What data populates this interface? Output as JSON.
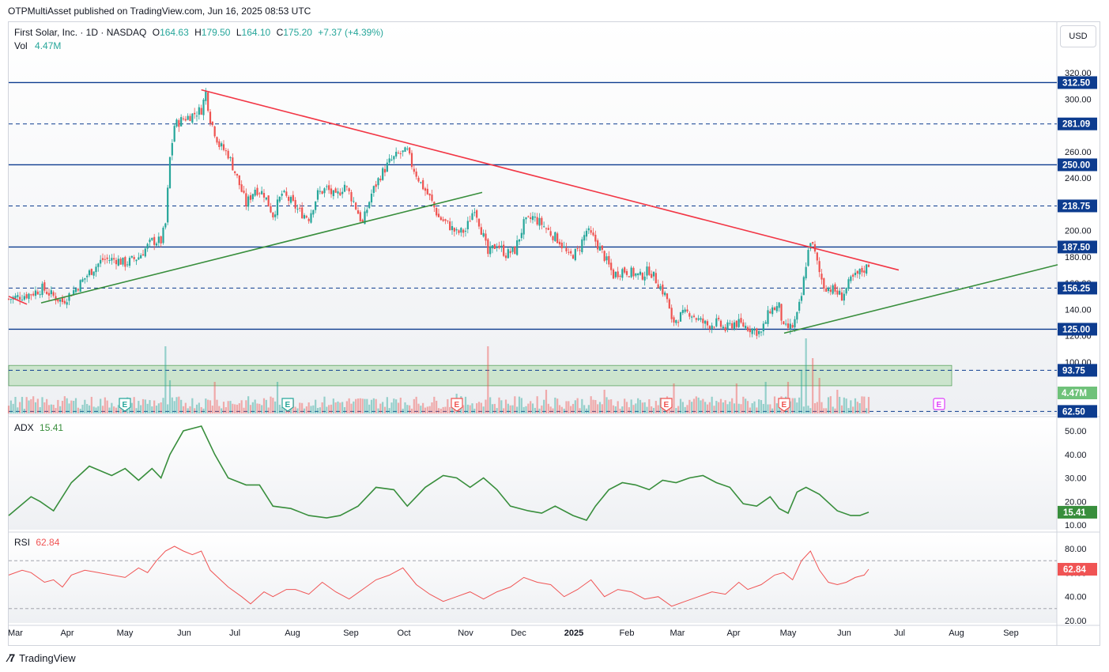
{
  "header": {
    "publisher": "OTPMultiAsset published on TradingView.com, Jun 16, 2025 08:53 UTC"
  },
  "legend": {
    "symbol": "First Solar, Inc. · 1D · NASDAQ",
    "open_label": "O",
    "open": "164.63",
    "high_label": "H",
    "high": "179.50",
    "low_label": "L",
    "low": "164.10",
    "close_label": "C",
    "close": "175.20",
    "change": "+7.37 (+4.39%)",
    "vol_label": "Vol",
    "vol_value": "4.47M"
  },
  "indicators": {
    "adx_label": "ADX",
    "adx_value": "15.41",
    "rsi_label": "RSI",
    "rsi_value": "62.84"
  },
  "currency_button": "USD",
  "footer": {
    "brand": "TradingView"
  },
  "colors": {
    "up": "#26a69a",
    "down": "#ef5350",
    "trend_red": "#f23645",
    "trend_green": "#388e3c",
    "level": "#0d3c8f",
    "adx": "#388e3c",
    "rsi": "#f05454",
    "earnings": "#26a69a",
    "zone": "#9fd49e"
  },
  "chart_data": [
    {
      "type": "line",
      "series": "price-candles",
      "y_ticks": [
        100,
        120,
        140,
        160,
        180,
        200,
        220,
        240,
        260,
        280,
        300,
        320
      ],
      "ylim": [
        62.5,
        345
      ],
      "x_labels": [
        "Mar",
        "Apr",
        "May",
        "Jun",
        "Jul",
        "Aug",
        "Sep",
        "Oct",
        "Nov",
        "Dec",
        "2025",
        "Feb",
        "Mar",
        "Apr",
        "May",
        "Jun",
        "Jul",
        "Aug",
        "Sep"
      ],
      "price_path": [
        [
          0,
          148
        ],
        [
          5,
          150
        ],
        [
          10,
          152
        ],
        [
          15,
          156
        ],
        [
          20,
          150
        ],
        [
          24,
          146
        ],
        [
          30,
          156
        ],
        [
          36,
          168
        ],
        [
          42,
          178
        ],
        [
          48,
          178
        ],
        [
          52,
          175
        ],
        [
          58,
          180
        ],
        [
          64,
          192
        ],
        [
          68,
          192
        ],
        [
          70,
          205
        ],
        [
          72,
          255
        ],
        [
          74,
          280
        ],
        [
          78,
          285
        ],
        [
          82,
          288
        ],
        [
          86,
          292
        ],
        [
          88,
          305
        ],
        [
          90,
          285
        ],
        [
          94,
          265
        ],
        [
          98,
          258
        ],
        [
          102,
          240
        ],
        [
          106,
          220
        ],
        [
          110,
          232
        ],
        [
          114,
          228
        ],
        [
          118,
          212
        ],
        [
          122,
          228
        ],
        [
          126,
          222
        ],
        [
          130,
          214
        ],
        [
          134,
          210
        ],
        [
          138,
          228
        ],
        [
          142,
          232
        ],
        [
          146,
          225
        ],
        [
          150,
          235
        ],
        [
          154,
          222
        ],
        [
          158,
          205
        ],
        [
          162,
          228
        ],
        [
          166,
          242
        ],
        [
          170,
          252
        ],
        [
          174,
          258
        ],
        [
          178,
          260
        ],
        [
          180,
          250
        ],
        [
          184,
          236
        ],
        [
          188,
          225
        ],
        [
          192,
          210
        ],
        [
          196,
          205
        ],
        [
          200,
          198
        ],
        [
          204,
          200
        ],
        [
          208,
          218
        ],
        [
          212,
          195
        ],
        [
          214,
          182
        ],
        [
          218,
          190
        ],
        [
          222,
          182
        ],
        [
          226,
          185
        ],
        [
          230,
          205
        ],
        [
          234,
          210
        ],
        [
          238,
          205
        ],
        [
          242,
          198
        ],
        [
          246,
          192
        ],
        [
          250,
          180
        ],
        [
          254,
          184
        ],
        [
          258,
          200
        ],
        [
          262,
          192
        ],
        [
          266,
          180
        ],
        [
          270,
          166
        ],
        [
          274,
          170
        ],
        [
          278,
          168
        ],
        [
          282,
          165
        ],
        [
          286,
          170
        ],
        [
          290,
          160
        ],
        [
          294,
          148
        ],
        [
          296,
          130
        ],
        [
          300,
          135
        ],
        [
          304,
          138
        ],
        [
          308,
          132
        ],
        [
          312,
          128
        ],
        [
          316,
          130
        ],
        [
          320,
          125
        ],
        [
          324,
          130
        ],
        [
          328,
          128
        ],
        [
          332,
          125
        ],
        [
          336,
          122
        ],
        [
          340,
          140
        ],
        [
          344,
          142
        ],
        [
          346,
          125
        ],
        [
          350,
          127
        ],
        [
          352,
          135
        ],
        [
          354,
          150
        ],
        [
          356,
          175
        ],
        [
          358,
          193
        ],
        [
          360,
          182
        ],
        [
          362,
          168
        ],
        [
          364,
          158
        ],
        [
          368,
          155
        ],
        [
          372,
          150
        ],
        [
          376,
          162
        ],
        [
          380,
          168
        ],
        [
          383,
          172
        ],
        [
          384,
          175
        ]
      ],
      "levels": [
        312.5,
        281.09,
        250.0,
        218.75,
        187.5,
        156.25,
        125.0,
        93.75,
        62.5
      ],
      "level_labels": [
        "312.50",
        "281.09",
        "250.00",
        "218.75",
        "187.50",
        "156.25",
        "125.00",
        "93.75",
        "62.50"
      ],
      "volume_label": "4.47M"
    },
    {
      "type": "line",
      "series": "adx",
      "ylim": [
        10,
        52
      ],
      "y_ticks": [
        10,
        20,
        30,
        40,
        50
      ],
      "y_tick_labels": [
        "10.00",
        "20.00",
        "30.00",
        "40.00",
        "50.00"
      ],
      "points": [
        [
          0,
          14
        ],
        [
          10,
          22
        ],
        [
          14,
          20
        ],
        [
          20,
          16
        ],
        [
          28,
          28
        ],
        [
          36,
          35
        ],
        [
          46,
          31
        ],
        [
          52,
          34
        ],
        [
          58,
          29
        ],
        [
          64,
          34
        ],
        [
          68,
          30
        ],
        [
          72,
          40
        ],
        [
          78,
          50
        ],
        [
          86,
          52
        ],
        [
          92,
          40
        ],
        [
          98,
          30
        ],
        [
          106,
          27
        ],
        [
          112,
          27
        ],
        [
          118,
          18
        ],
        [
          126,
          17
        ],
        [
          134,
          14
        ],
        [
          142,
          13
        ],
        [
          148,
          14
        ],
        [
          156,
          18
        ],
        [
          164,
          26
        ],
        [
          172,
          25
        ],
        [
          178,
          18
        ],
        [
          186,
          26
        ],
        [
          194,
          31
        ],
        [
          200,
          30
        ],
        [
          206,
          26
        ],
        [
          212,
          30
        ],
        [
          218,
          25
        ],
        [
          224,
          18
        ],
        [
          232,
          16
        ],
        [
          238,
          15
        ],
        [
          244,
          18
        ],
        [
          252,
          14
        ],
        [
          258,
          12
        ],
        [
          262,
          18
        ],
        [
          268,
          25
        ],
        [
          274,
          28
        ],
        [
          280,
          27
        ],
        [
          286,
          25
        ],
        [
          292,
          29
        ],
        [
          298,
          28
        ],
        [
          304,
          30
        ],
        [
          310,
          31
        ],
        [
          316,
          28
        ],
        [
          322,
          26
        ],
        [
          328,
          19
        ],
        [
          334,
          18
        ],
        [
          340,
          22
        ],
        [
          344,
          17
        ],
        [
          348,
          15
        ],
        [
          352,
          24
        ],
        [
          356,
          26
        ],
        [
          362,
          23
        ],
        [
          370,
          16
        ],
        [
          376,
          14
        ],
        [
          380,
          14
        ],
        [
          384,
          15.4
        ]
      ],
      "last_label": "15.41"
    },
    {
      "type": "line",
      "series": "rsi",
      "ylim": [
        20,
        95
      ],
      "y_ticks": [
        20,
        40,
        60,
        80
      ],
      "y_tick_labels": [
        "20.00",
        "40.00",
        "60.00",
        "80.00"
      ],
      "bands": [
        70,
        30
      ],
      "points": [
        [
          0,
          58
        ],
        [
          6,
          62
        ],
        [
          10,
          60
        ],
        [
          16,
          52
        ],
        [
          20,
          54
        ],
        [
          24,
          48
        ],
        [
          28,
          58
        ],
        [
          34,
          62
        ],
        [
          40,
          60
        ],
        [
          46,
          58
        ],
        [
          52,
          56
        ],
        [
          58,
          64
        ],
        [
          62,
          60
        ],
        [
          66,
          70
        ],
        [
          70,
          78
        ],
        [
          74,
          82
        ],
        [
          78,
          78
        ],
        [
          82,
          75
        ],
        [
          86,
          78
        ],
        [
          90,
          62
        ],
        [
          94,
          55
        ],
        [
          98,
          48
        ],
        [
          104,
          40
        ],
        [
          108,
          34
        ],
        [
          114,
          44
        ],
        [
          118,
          40
        ],
        [
          124,
          46
        ],
        [
          128,
          46
        ],
        [
          134,
          42
        ],
        [
          140,
          52
        ],
        [
          146,
          44
        ],
        [
          152,
          38
        ],
        [
          158,
          46
        ],
        [
          164,
          54
        ],
        [
          170,
          58
        ],
        [
          176,
          64
        ],
        [
          182,
          50
        ],
        [
          188,
          42
        ],
        [
          194,
          36
        ],
        [
          200,
          40
        ],
        [
          206,
          44
        ],
        [
          212,
          38
        ],
        [
          218,
          44
        ],
        [
          224,
          48
        ],
        [
          230,
          56
        ],
        [
          236,
          52
        ],
        [
          242,
          50
        ],
        [
          248,
          40
        ],
        [
          254,
          46
        ],
        [
          260,
          54
        ],
        [
          266,
          40
        ],
        [
          272,
          46
        ],
        [
          278,
          44
        ],
        [
          284,
          38
        ],
        [
          290,
          40
        ],
        [
          296,
          32
        ],
        [
          302,
          36
        ],
        [
          308,
          40
        ],
        [
          314,
          44
        ],
        [
          320,
          42
        ],
        [
          326,
          52
        ],
        [
          330,
          46
        ],
        [
          336,
          50
        ],
        [
          342,
          58
        ],
        [
          346,
          60
        ],
        [
          350,
          54
        ],
        [
          354,
          70
        ],
        [
          358,
          78
        ],
        [
          362,
          62
        ],
        [
          366,
          52
        ],
        [
          370,
          50
        ],
        [
          374,
          52
        ],
        [
          378,
          56
        ],
        [
          382,
          58
        ],
        [
          384,
          62.84
        ]
      ],
      "last_label": "62.84"
    }
  ],
  "x_axis": {
    "labels": [
      "Mar",
      "Apr",
      "May",
      "Jun",
      "Jul",
      "Aug",
      "Sep",
      "Oct",
      "Nov",
      "Dec",
      "2025",
      "Feb",
      "Mar",
      "Apr",
      "May",
      "Jun",
      "Jul",
      "Aug",
      "Sep"
    ],
    "positions": [
      10,
      85,
      158,
      233,
      297,
      370,
      444,
      511,
      589,
      656,
      726,
      793,
      857,
      928,
      997,
      1068,
      1138,
      1210,
      1279
    ]
  },
  "earnings_markers": [
    {
      "label": "E",
      "kind": "past-up",
      "pos": 158
    },
    {
      "label": "E",
      "kind": "past-up",
      "pos": 364
    },
    {
      "label": "E",
      "kind": "past-down",
      "pos": 578
    },
    {
      "label": "E",
      "kind": "past-down",
      "pos": 843
    },
    {
      "label": "E",
      "kind": "past-down",
      "pos": 992
    },
    {
      "label": "E",
      "kind": "future",
      "pos": 1188
    }
  ]
}
